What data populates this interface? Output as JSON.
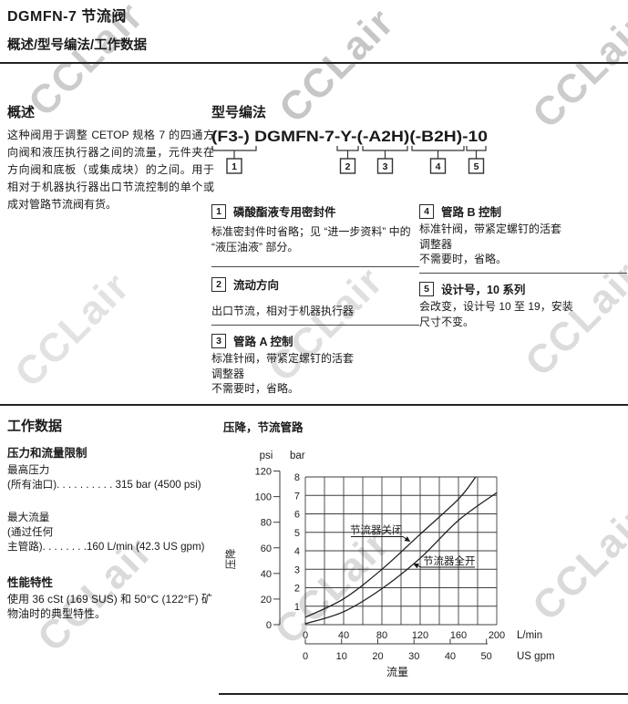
{
  "page": {
    "title": "DGMFN-7  节流阀",
    "section_header": "概述/型号编法/工作数据"
  },
  "watermark": {
    "text": "CCLair"
  },
  "overview": {
    "heading": "概述",
    "body": "这种阀用于调整 CETOP 规格 7 的四通方向阀和液压执行器之间的流量，元件夹在方向阀和底板（或集成块）的之间。用于相对于机器执行器出口节流控制的单个或成对管路节流阀有货。"
  },
  "model_code": {
    "heading": "型号编法",
    "code": "(F3-) DGMFN-7-Y-(-A2H)(-B2H)-10",
    "items": [
      {
        "num": "1",
        "title": "磷酸酯液专用密封件",
        "body": "标准密封件时省略；见 “进一步资料” 中的 “液压油液” 部分。"
      },
      {
        "num": "2",
        "title": "流动方向",
        "body": "出口节流，相对于机器执行器"
      },
      {
        "num": "3",
        "title": "管路 A 控制",
        "body": "标准针阀，带紧定螺钉的活套\n调整器\n不需要时，省略。"
      },
      {
        "num": "4",
        "title": "管路 B 控制",
        "body": "标准针阀，带紧定螺钉的活套\n调整器\n不需要时，省略。"
      },
      {
        "num": "5",
        "title": "设计号，10 系列",
        "body": "会改变，设计号 10 至 19，安装\n尺寸不变。"
      }
    ]
  },
  "working_data": {
    "heading": "工作数据",
    "limits_heading": "压力和流量限制",
    "max_pressure_label": "最高压力",
    "max_pressure_line": "(所有油口). . . . . . . . . .  315 bar (4500 psi)",
    "max_flow_label": "最大流量",
    "max_flow_line2": "(通过任何",
    "max_flow_line3": "主管路). . . . . . . .160 L/min (42.3 US gpm)",
    "performance_heading": "性能特性",
    "performance_body": "使用 36 cSt (169 SUS) 和 50°C (122°F) 矿物油时的典型特性。"
  },
  "chart_data": {
    "type": "line",
    "title": "压降，节流管路",
    "xlabel": "流量",
    "ylabel": "压降",
    "x_units": [
      "L/min",
      "US gpm"
    ],
    "y_units": [
      "psi",
      "bar"
    ],
    "xlim_lmin": [
      0,
      200
    ],
    "ylim_bar": [
      0,
      8
    ],
    "grid": true,
    "x_ticks_lmin": [
      0,
      40,
      80,
      120,
      160,
      200
    ],
    "x_ticks_usgpm": [
      0,
      10,
      20,
      30,
      40,
      50
    ],
    "y_ticks_bar": [
      1,
      2,
      3,
      4,
      5,
      6,
      7,
      8
    ],
    "y_ticks_psi": [
      0,
      20,
      40,
      60,
      80,
      100,
      120
    ],
    "series": [
      {
        "name": "节流器关闭",
        "x": [
          0,
          40,
          80,
          120,
          160,
          178
        ],
        "y": [
          0.4,
          1.4,
          3.0,
          4.9,
          6.8,
          8.0
        ]
      },
      {
        "name": "节流器全开",
        "x": [
          0,
          40,
          80,
          120,
          160,
          200
        ],
        "y": [
          0.05,
          0.7,
          1.95,
          3.6,
          5.65,
          7.15
        ]
      }
    ]
  }
}
